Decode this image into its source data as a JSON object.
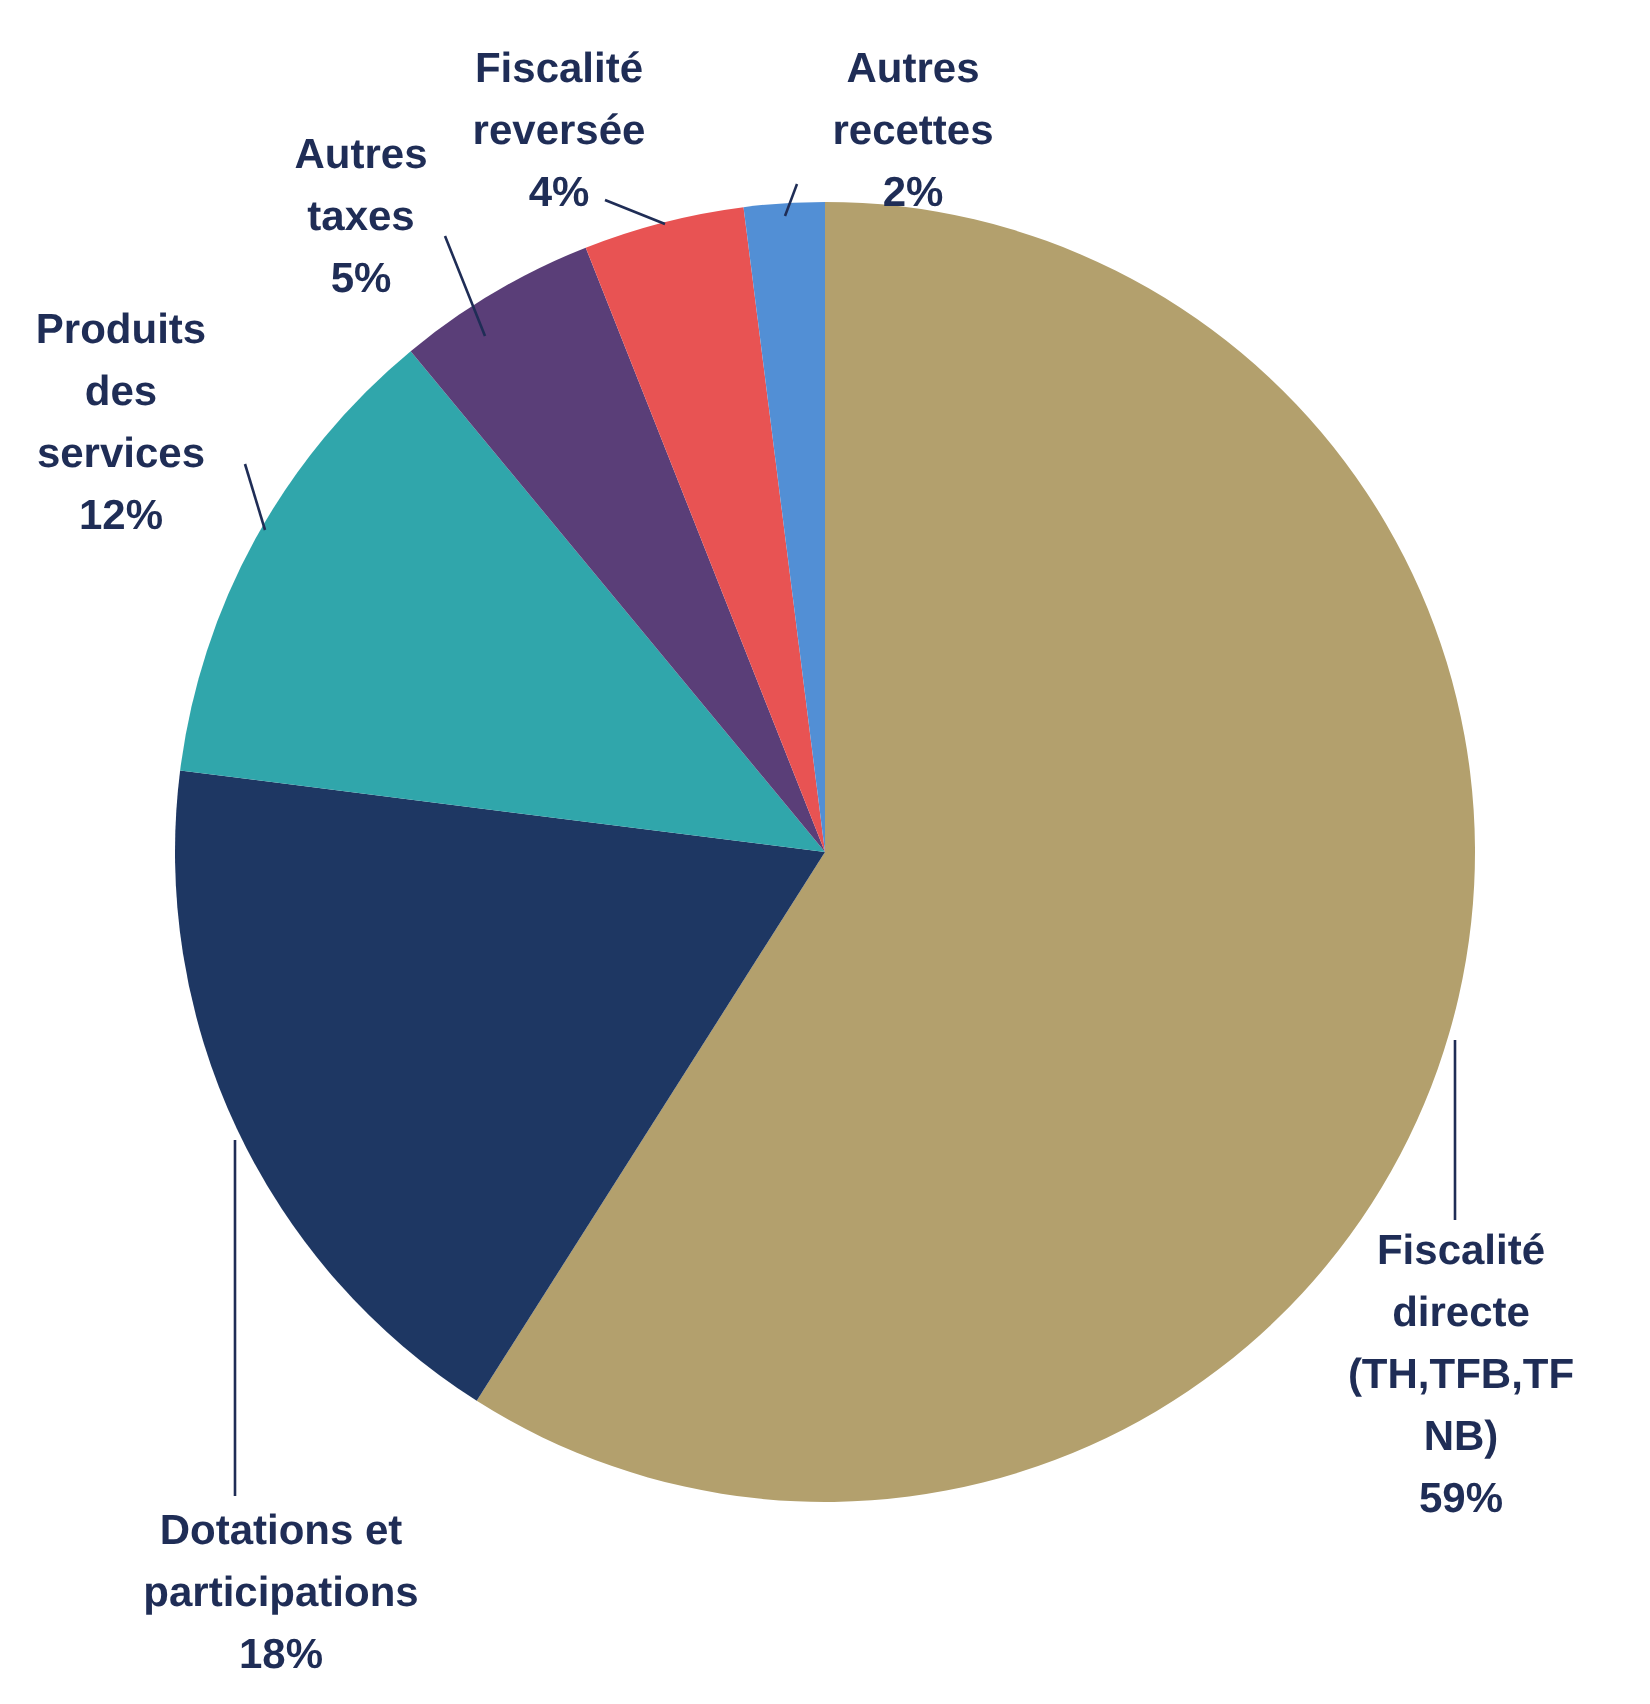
{
  "chart_data": {
    "type": "pie",
    "categories": [
      "Fiscalité directe (TH,TFB,TFNB)",
      "Dotations et participations",
      "Produits des services",
      "Autres taxes",
      "Fiscalité reversée",
      "Autres recettes"
    ],
    "values": [
      59,
      18,
      12,
      5,
      4,
      2
    ],
    "colors": [
      "#b3a06d",
      "#1e3763",
      "#30a6ab",
      "#5a3e78",
      "#e85353",
      "#528fd5"
    ],
    "value_labels": [
      "59%",
      "18%",
      "12%",
      "5%",
      "4%",
      "2%"
    ]
  }
}
